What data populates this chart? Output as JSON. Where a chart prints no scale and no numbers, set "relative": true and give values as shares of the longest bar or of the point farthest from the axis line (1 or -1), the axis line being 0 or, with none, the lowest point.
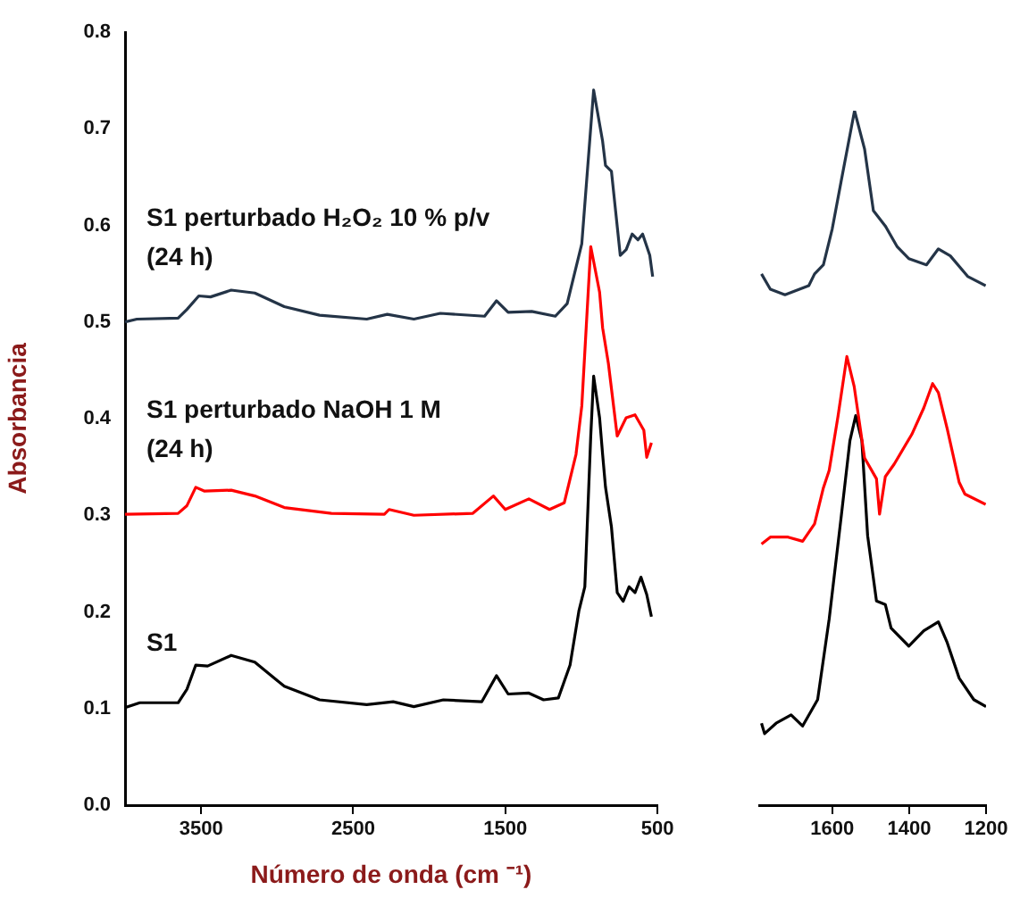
{
  "chart_data": [
    {
      "type": "line",
      "xlabel": "Número de onda (cm ⁻¹)",
      "ylabel": "Absorbancia",
      "xlim": [
        4000,
        500
      ],
      "xticks": [
        3500,
        2500,
        1500,
        500
      ],
      "ylim": [
        0,
        0.8
      ],
      "yticks": [
        {
          "value": 0,
          "label": "0.0"
        },
        0.1,
        0.2,
        0.3,
        0.4,
        0.5,
        0.6,
        0.7,
        0.8
      ],
      "marker": "none",
      "line_style": "solid",
      "series": [
        {
          "name": "S1 perturbado H₂O₂ 10 % p/v\n(24 h)",
          "color": "#243447",
          "x": [
            4000,
            3922,
            3651,
            3593,
            3515,
            3438,
            3302,
            3147,
            2953,
            2721,
            2411,
            2276,
            2101,
            1927,
            1636,
            1558,
            1481,
            1326,
            1171,
            1093,
            997,
            919,
            860,
            841,
            802,
            744,
            705,
            666,
            628,
            597,
            550,
            531
          ],
          "values": [
            0.5,
            0.503,
            0.504,
            0.513,
            0.527,
            0.526,
            0.533,
            0.53,
            0.516,
            0.507,
            0.503,
            0.508,
            0.503,
            0.509,
            0.506,
            0.522,
            0.51,
            0.511,
            0.506,
            0.519,
            0.581,
            0.74,
            0.687,
            0.662,
            0.656,
            0.569,
            0.575,
            0.591,
            0.585,
            0.591,
            0.569,
            0.547
          ]
        },
        {
          "name": "S1 perturbado NaOH 1 M\n(24 h)",
          "color": "#ff0000",
          "x": [
            4000,
            3651,
            3593,
            3535,
            3477,
            3302,
            3147,
            2953,
            2643,
            2295,
            2264,
            2101,
            1713,
            1578,
            1500,
            1345,
            1209,
            1112,
            1035,
            997,
            938,
            880,
            860,
            822,
            764,
            705,
            647,
            589,
            570,
            539
          ],
          "values": [
            0.301,
            0.302,
            0.31,
            0.329,
            0.325,
            0.326,
            0.32,
            0.308,
            0.302,
            0.301,
            0.306,
            0.3,
            0.302,
            0.32,
            0.306,
            0.317,
            0.306,
            0.313,
            0.363,
            0.413,
            0.578,
            0.531,
            0.494,
            0.457,
            0.382,
            0.401,
            0.404,
            0.388,
            0.36,
            0.375
          ]
        },
        {
          "name": "S1",
          "color": "#000000",
          "x": [
            4000,
            3903,
            3651,
            3593,
            3535,
            3457,
            3302,
            3147,
            2953,
            2721,
            2411,
            2237,
            2101,
            1907,
            1655,
            1558,
            1481,
            1345,
            1248,
            1151,
            1074,
            1016,
            977,
            938,
            919,
            880,
            860,
            841,
            802,
            764,
            725,
            686,
            647,
            608,
            570,
            539
          ],
          "values": [
            0.101,
            0.106,
            0.106,
            0.12,
            0.145,
            0.144,
            0.155,
            0.148,
            0.123,
            0.109,
            0.104,
            0.107,
            0.102,
            0.109,
            0.107,
            0.134,
            0.115,
            0.116,
            0.109,
            0.111,
            0.145,
            0.201,
            0.226,
            0.382,
            0.444,
            0.401,
            0.363,
            0.329,
            0.288,
            0.22,
            0.211,
            0.226,
            0.22,
            0.236,
            0.218,
            0.195
          ]
        }
      ]
    },
    {
      "type": "line",
      "relative": true,
      "tick_labels": "x",
      "xlim": [
        1790,
        1200
      ],
      "xticks": [
        1600,
        1400,
        1200
      ],
      "marker": "none",
      "line_style": "solid",
      "series": [
        {
          "color": "#243447",
          "x": [
            1784,
            1761,
            1723,
            1661,
            1646,
            1623,
            1600,
            1577,
            1542,
            1516,
            1493,
            1462,
            1431,
            1401,
            1355,
            1324,
            1293,
            1247,
            1201
          ],
          "values": [
            0.765,
            0.743,
            0.735,
            0.748,
            0.765,
            0.778,
            0.83,
            0.898,
            1,
            0.945,
            0.856,
            0.834,
            0.804,
            0.787,
            0.778,
            0.801,
            0.791,
            0.761,
            0.748
          ]
        },
        {
          "color": "#ff0000",
          "x": [
            1784,
            1761,
            1715,
            1677,
            1646,
            1623,
            1608,
            1585,
            1562,
            1543,
            1516,
            1485,
            1477,
            1462,
            1439,
            1393,
            1362,
            1339,
            1324,
            1301,
            1270,
            1255,
            1201
          ],
          "values": [
            0.376,
            0.386,
            0.386,
            0.38,
            0.405,
            0.457,
            0.482,
            0.56,
            0.646,
            0.603,
            0.5,
            0.47,
            0.419,
            0.473,
            0.491,
            0.534,
            0.572,
            0.607,
            0.594,
            0.542,
            0.465,
            0.448,
            0.433
          ]
        },
        {
          "color": "#000000",
          "x": [
            1784,
            1776,
            1746,
            1707,
            1677,
            1638,
            1608,
            1577,
            1554,
            1539,
            1523,
            1508,
            1485,
            1462,
            1447,
            1401,
            1362,
            1324,
            1301,
            1270,
            1232,
            1200
          ],
          "values": [
            0.118,
            0.103,
            0.118,
            0.13,
            0.114,
            0.152,
            0.268,
            0.414,
            0.525,
            0.561,
            0.525,
            0.388,
            0.294,
            0.289,
            0.255,
            0.229,
            0.251,
            0.264,
            0.234,
            0.183,
            0.152,
            0.142
          ]
        }
      ]
    }
  ]
}
